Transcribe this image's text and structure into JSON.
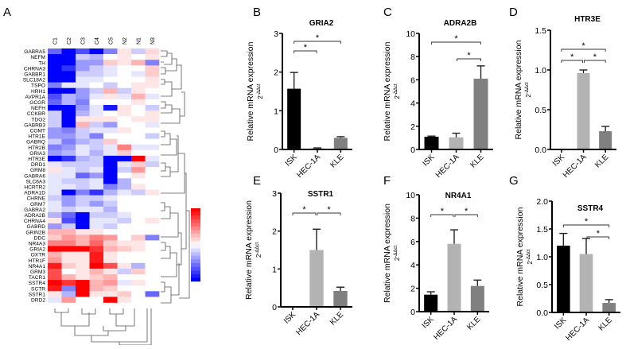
{
  "panel_letters": [
    "A",
    "B",
    "C",
    "D",
    "E",
    "F",
    "G"
  ],
  "chart_data": [
    {
      "panel": "A",
      "type": "heatmap",
      "columns": [
        "C1",
        "C2",
        "C3",
        "C4",
        "C5",
        "N2",
        "N1",
        "N3"
      ],
      "rows": [
        "GABRA5",
        "NEFM",
        "TH",
        "CHRNA3",
        "GABBR1",
        "SLC18A2",
        "TSPO",
        "HRH1",
        "AVPR1A",
        "GCGR",
        "NEFH",
        "CCKBR",
        "TDO2",
        "GABRB3",
        "COMT",
        "HTR1E",
        "GABRQ",
        "HTR2B",
        "GRIA3",
        "HTR3E",
        "DRD1",
        "GRM8",
        "GABRA6",
        "SLC6A3",
        "HCRTR2",
        "ADRA1D",
        "CHRNE",
        "GRM7",
        "GABRA2",
        "ADRA2B",
        "CHRNA4",
        "GABRD",
        "GRIN2B",
        "DDC",
        "NR4A3",
        "GRIA2",
        "OXTR",
        "HTR1F",
        "NR4A1",
        "GRM3",
        "TACR1",
        "SSTR4",
        "SCTR",
        "SSTR1",
        "DRD2"
      ],
      "values": [
        [
          -0.6,
          -1,
          -0.7,
          -1,
          -0.5,
          0.1,
          -0.2,
          0.15
        ],
        [
          -1,
          -1,
          -0.2,
          -0.3,
          0,
          0.1,
          0,
          0.1
        ],
        [
          -1,
          -1,
          -0.4,
          -0.4,
          0.2,
          0.1,
          0.3,
          -0.5
        ],
        [
          -1,
          -0.8,
          -0.4,
          -0.2,
          -0.1,
          0,
          0,
          0.2
        ],
        [
          -1,
          -1,
          -0.2,
          -0.2,
          -0.1,
          0,
          -0.1,
          0.2
        ],
        [
          -1,
          -1,
          -0.1,
          -0.1,
          0,
          0,
          0,
          0.1
        ],
        [
          -0.5,
          -0.1,
          -0.1,
          0,
          -0.2,
          0,
          0.1,
          0.1
        ],
        [
          -1,
          -1,
          -0.4,
          -0.2,
          0.3,
          -0.2,
          0.1,
          0
        ],
        [
          -0.7,
          -0.3,
          -0.4,
          -0.1,
          0.1,
          -0.1,
          0.3,
          -0.1
        ],
        [
          -0.6,
          -0.3,
          -0.5,
          0,
          0,
          0,
          0.1,
          0
        ],
        [
          -1,
          -1,
          -0.4,
          -0.1,
          -0.9,
          0.1,
          0,
          -0.2
        ],
        [
          -0.2,
          -1,
          -0.3,
          -0.1,
          0,
          0.1,
          0,
          0.1
        ],
        [
          -0.2,
          -1,
          0.1,
          0.1,
          0.1,
          0,
          0.1,
          0.1
        ],
        [
          -0.2,
          -1,
          0.3,
          -0.2,
          -0.4,
          0,
          0,
          -0.1
        ],
        [
          -0.4,
          -0.5,
          -0.2,
          -0.1,
          -0.1,
          0.1,
          0,
          0
        ],
        [
          -0.4,
          -0.4,
          -0.2,
          -0.5,
          0,
          0,
          0,
          -0.2
        ],
        [
          -0.2,
          -0.5,
          -0.3,
          -0.2,
          0.2,
          0,
          0,
          0
        ],
        [
          -0.5,
          -0.4,
          -0.1,
          -0.2,
          -0.1,
          0.5,
          -0.1,
          -0.1
        ],
        [
          -0.4,
          -0.3,
          -0.1,
          -0.3,
          -0.1,
          0.2,
          0,
          0
        ],
        [
          -1,
          -0.8,
          -0.3,
          -0.2,
          -1,
          -1,
          1,
          -0.1
        ],
        [
          -0.1,
          -0.2,
          -0.2,
          -0.2,
          -1,
          -0.1,
          0.2,
          -0.2
        ],
        [
          0.1,
          -0.1,
          -0.2,
          -0.1,
          -1,
          -0.2,
          0.4,
          0
        ],
        [
          -0.1,
          -0.1,
          -0.6,
          -0.4,
          -1,
          0,
          0.1,
          0
        ],
        [
          -0.1,
          -0.2,
          -0.2,
          -0.1,
          -1,
          -0.3,
          0,
          0
        ],
        [
          -0.1,
          -0.1,
          -0.2,
          -0.1,
          -0.5,
          -0.3,
          0.1,
          0
        ],
        [
          -0.1,
          -1,
          -0.5,
          -0.8,
          -0.3,
          -0.1,
          -0.2,
          0.1
        ],
        [
          -0.2,
          -0.4,
          -0.2,
          -0.2,
          -0.1,
          0,
          0,
          0
        ],
        [
          -0.1,
          -0.4,
          -0.2,
          -0.4,
          -0.2,
          0,
          0,
          0
        ],
        [
          -0.1,
          -0.2,
          -0.1,
          -0.1,
          -0.3,
          0,
          0,
          0
        ],
        [
          -0.3,
          -0.6,
          -1,
          -0.2,
          -0.2,
          -0.1,
          0,
          0
        ],
        [
          0.1,
          -0.7,
          -1,
          -0.1,
          -0.1,
          -0.2,
          0,
          0.1
        ],
        [
          -0.4,
          -0.2,
          -1,
          -0.1,
          -0.2,
          0,
          0,
          0
        ],
        [
          0.3,
          0.3,
          0.1,
          0.1,
          0,
          0,
          0,
          0
        ],
        [
          0.2,
          0.4,
          0.3,
          0.5,
          0.4,
          0,
          0.2,
          -0.5
        ],
        [
          0.5,
          0.5,
          0.3,
          0.6,
          0.2,
          0.1,
          0.1,
          0
        ],
        [
          1,
          1,
          1,
          0.8,
          0.3,
          0.2,
          0.1,
          0
        ],
        [
          0.3,
          0.1,
          0.1,
          0.9,
          0.1,
          0,
          0,
          0
        ],
        [
          0.4,
          0.1,
          0.1,
          0.9,
          0.1,
          0,
          0,
          0
        ],
        [
          0.9,
          0.2,
          0.1,
          1,
          0.7,
          0.1,
          -0.3,
          0
        ],
        [
          0.7,
          0,
          0.1,
          0.3,
          0.1,
          -0.2,
          0.2,
          0
        ],
        [
          0.7,
          0.3,
          0.1,
          0.2,
          0.3,
          0,
          0,
          0
        ],
        [
          1,
          0.8,
          1,
          0.3,
          0.4,
          -0.1,
          0.1,
          0
        ],
        [
          0.9,
          -0.5,
          1,
          0.3,
          0.2,
          0,
          0,
          0
        ],
        [
          0.1,
          -0.3,
          1,
          0.1,
          0.1,
          0.2,
          0,
          -0.6
        ],
        [
          -0.1,
          0.4,
          0,
          0,
          1,
          0.1,
          0,
          0
        ]
      ],
      "colormap": {
        "high": "#ff0000",
        "mid": "#ffffff",
        "low": "#0000ff"
      },
      "dendrogram": "rows-and-columns"
    },
    {
      "panel": "B",
      "type": "bar",
      "title": "GRIA2",
      "ylabel": "Relative mRNA expression",
      "ylabel_sub": "2",
      "ylabel_sup": "-ΔΔct",
      "categories": [
        "ISK",
        "HEC-1A",
        "KLE"
      ],
      "values": [
        1.57,
        0.03,
        0.3
      ],
      "errors": [
        0.42,
        0.01,
        0.03
      ],
      "ylim": [
        0,
        3
      ],
      "yticks": [
        "0",
        "1",
        "2",
        "3"
      ],
      "significance": [
        {
          "from": 0,
          "to": 1,
          "label": "*",
          "level": 0
        },
        {
          "from": 0,
          "to": 2,
          "label": "*",
          "level": 1
        }
      ]
    },
    {
      "panel": "C",
      "type": "bar",
      "title": "ADRA2B",
      "ylabel": "Relative mRNA expression",
      "ylabel_sub": "2",
      "ylabel_sup": "-ΔΔct",
      "categories": [
        "ISK",
        "HEC-1A",
        "KLE"
      ],
      "values": [
        1.1,
        1.05,
        6.1
      ],
      "errors": [
        0.05,
        0.35,
        1.1
      ],
      "ylim": [
        0,
        10
      ],
      "yticks": [
        "0",
        "2",
        "4",
        "6",
        "8",
        "10"
      ],
      "significance": [
        {
          "from": 1,
          "to": 2,
          "label": "*",
          "level": 0
        },
        {
          "from": 0,
          "to": 2,
          "label": "*",
          "level": 1
        }
      ]
    },
    {
      "panel": "D",
      "type": "bar",
      "title": "HTR3E",
      "ylabel": "Relative mRNA expression",
      "ylabel_sub": "2",
      "ylabel_sup": "-ΔΔct",
      "categories": [
        "ISK",
        "HEC-1A",
        "KLE"
      ],
      "values": [
        0,
        0.96,
        0.23
      ],
      "errors": [
        0,
        0.04,
        0.06
      ],
      "ylim": [
        0,
        1.5
      ],
      "yticks": [
        "0.0",
        "0.5",
        "1.0",
        "1.5"
      ],
      "significance": [
        {
          "from": 0,
          "to": 1,
          "label": "*",
          "level": 0
        },
        {
          "from": 1,
          "to": 2,
          "label": "*",
          "level": 0
        },
        {
          "from": 0,
          "to": 2,
          "label": "*",
          "level": 1
        }
      ]
    },
    {
      "panel": "E",
      "type": "bar",
      "title": "SSTR1",
      "ylabel": "Relative mRNA expression",
      "ylabel_sub": "2",
      "ylabel_sup": "-ΔΔct",
      "categories": [
        "ISK",
        "HEC-1A",
        "KLE"
      ],
      "values": [
        0,
        1.5,
        0.42
      ],
      "errors": [
        0,
        0.55,
        0.1
      ],
      "ylim": [
        0,
        3
      ],
      "yticks": [
        "0",
        "1",
        "2",
        "3"
      ],
      "significance": [
        {
          "from": 0,
          "to": 1,
          "label": "*",
          "level": 0
        },
        {
          "from": 1,
          "to": 2,
          "label": "*",
          "level": 0
        }
      ]
    },
    {
      "panel": "F",
      "type": "bar",
      "title": "NR4A1",
      "ylabel": "Relative mRNA expression",
      "ylabel_sub": "2",
      "ylabel_sup": "-ΔΔct",
      "categories": [
        "ISK",
        "HEC-1A",
        "KLE"
      ],
      "values": [
        1.45,
        5.8,
        2.2
      ],
      "errors": [
        0.25,
        1.2,
        0.5
      ],
      "ylim": [
        0,
        10
      ],
      "yticks": [
        "0",
        "2",
        "4",
        "6",
        "8",
        "10"
      ],
      "significance": [
        {
          "from": 0,
          "to": 1,
          "label": "*",
          "level": 0
        },
        {
          "from": 1,
          "to": 2,
          "label": "*",
          "level": 0
        }
      ]
    },
    {
      "panel": "G",
      "type": "bar",
      "title": "SSTR4",
      "ylabel": "Relative mRNA expression",
      "ylabel_sub": "2",
      "ylabel_sup": "-ΔΔct",
      "categories": [
        "ISK",
        "HEC-1A",
        "KLE"
      ],
      "values": [
        1.2,
        1.05,
        0.17
      ],
      "errors": [
        0.22,
        0.28,
        0.06
      ],
      "ylim": [
        0,
        2
      ],
      "yticks": [
        "0.0",
        "0.5",
        "1.0",
        "1.5",
        "2.0"
      ],
      "significance": [
        {
          "from": 1,
          "to": 2,
          "label": "*",
          "level": 0
        },
        {
          "from": 0,
          "to": 2,
          "label": "*",
          "level": 1
        }
      ]
    }
  ],
  "colors": {
    "ISK": "#000000",
    "HEC-1A": "#b3b3b3",
    "KLE": "#808080"
  }
}
